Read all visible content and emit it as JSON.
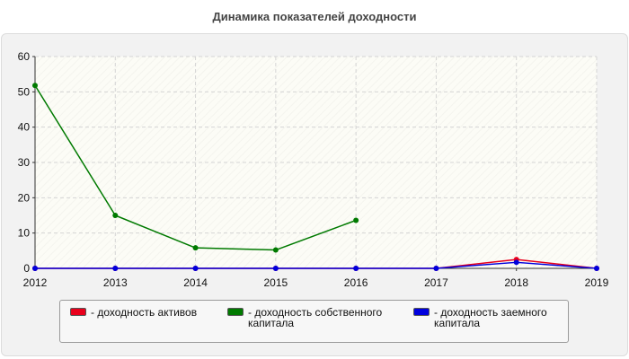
{
  "chart_data": {
    "type": "line",
    "title": "Динамика показателей доходности",
    "x": [
      "2012",
      "2013",
      "2014",
      "2015",
      "2016",
      "2017",
      "2018",
      "2019"
    ],
    "ylim": [
      0,
      60
    ],
    "yticks": [
      "0",
      "10",
      "20",
      "30",
      "40",
      "50",
      "60"
    ],
    "grid": true,
    "legend_position": "bottom",
    "series": [
      {
        "name": "- доходность активов",
        "color": "#e8001c",
        "values": [
          0,
          0,
          0,
          0,
          0,
          0,
          2.5,
          0
        ]
      },
      {
        "name": "- доходность собственного капитала",
        "color": "#007a00",
        "values": [
          51.8,
          15,
          5.8,
          5.2,
          13.6,
          null,
          null,
          null
        ]
      },
      {
        "name": "- доходность заемного капитала",
        "color": "#0000dd",
        "values": [
          0,
          0,
          0,
          0,
          0,
          0,
          1.7,
          0
        ]
      }
    ]
  }
}
